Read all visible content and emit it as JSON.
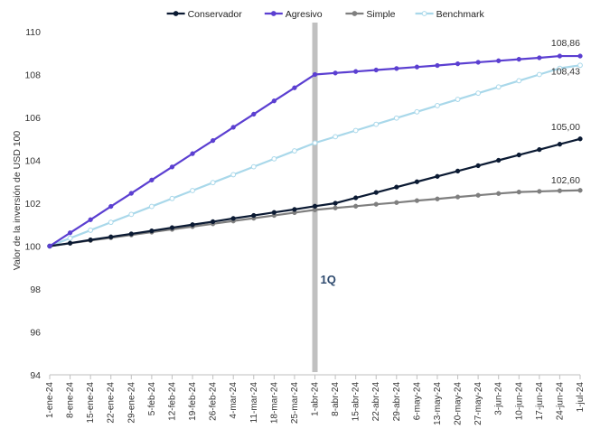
{
  "chart_data": {
    "type": "line",
    "ylabel": "Valor de la inversión de USD 100",
    "ylim": [
      94,
      110
    ],
    "yticks": [
      94,
      96,
      98,
      100,
      102,
      104,
      106,
      108,
      110
    ],
    "x": [
      "1-ene-24",
      "8-ene-24",
      "15-ene-24",
      "22-ene-24",
      "29-ene-24",
      "5-feb-24",
      "12-feb-24",
      "19-feb-24",
      "26-feb-24",
      "4-mar-24",
      "11-mar-24",
      "18-mar-24",
      "25-mar-24",
      "1-abr-24",
      "8-abr-24",
      "15-abr-24",
      "22-abr-24",
      "29-abr-24",
      "6-may-24",
      "13-may-24",
      "20-may-24",
      "27-may-24",
      "3-jun-24",
      "10-jun-24",
      "17-jun-24",
      "24-jun-24",
      "1-jul-24"
    ],
    "legend_position": "top",
    "marker": {
      "x_index": 13,
      "label": "1Q",
      "color": "#c0c0c0",
      "label_color": "#2e4a6e"
    },
    "series": [
      {
        "name": "Conservador",
        "color": "#0b1a33",
        "values": [
          100,
          100.14,
          100.29,
          100.43,
          100.57,
          100.71,
          100.86,
          101,
          101.14,
          101.29,
          101.43,
          101.57,
          101.71,
          101.86,
          102.0,
          102.25,
          102.5,
          102.75,
          103.0,
          103.25,
          103.5,
          103.75,
          104.0,
          104.25,
          104.5,
          104.75,
          105.0
        ],
        "end_label": "105,00"
      },
      {
        "name": "Agresivo",
        "color": "#5b3fd1",
        "values": [
          100,
          100.62,
          101.23,
          101.85,
          102.46,
          103.08,
          103.69,
          104.31,
          104.92,
          105.54,
          106.15,
          106.77,
          107.38,
          108.0,
          108.07,
          108.14,
          108.21,
          108.28,
          108.35,
          108.42,
          108.5,
          108.57,
          108.64,
          108.71,
          108.78,
          108.86,
          108.86
        ],
        "end_label": "108,86"
      },
      {
        "name": "Simple",
        "color": "#7f7f7f",
        "values": [
          100,
          100.13,
          100.26,
          100.39,
          100.52,
          100.65,
          100.78,
          100.91,
          101.04,
          101.17,
          101.3,
          101.43,
          101.56,
          101.69,
          101.78,
          101.86,
          101.95,
          102.03,
          102.12,
          102.2,
          102.29,
          102.37,
          102.45,
          102.52,
          102.55,
          102.58,
          102.6
        ],
        "end_label": "102,60"
      },
      {
        "name": "Benchmark",
        "color": "#a9d8ea",
        "values": [
          100,
          100.37,
          100.74,
          101.11,
          101.48,
          101.85,
          102.22,
          102.59,
          102.96,
          103.33,
          103.7,
          104.07,
          104.44,
          104.81,
          105.1,
          105.39,
          105.68,
          105.97,
          106.26,
          106.55,
          106.84,
          107.13,
          107.42,
          107.71,
          108.0,
          108.29,
          108.43
        ],
        "end_label": "108,43"
      }
    ]
  }
}
